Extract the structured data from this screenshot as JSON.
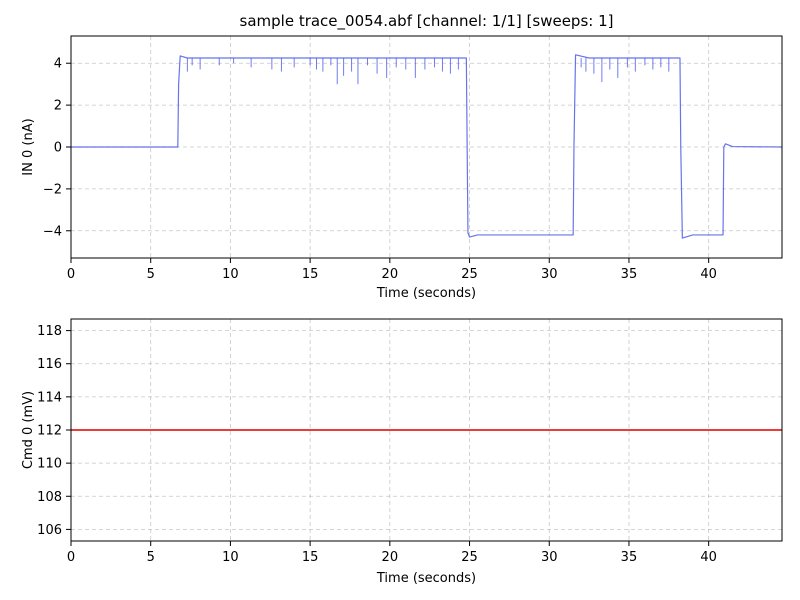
{
  "chart_data": [
    {
      "type": "line",
      "title": "sample trace_0054.abf [channel: 1/1] [sweeps: 1]",
      "xlabel": "Time (seconds)",
      "ylabel": "IN 0 (nA)",
      "xlim": [
        0,
        44.6
      ],
      "ylim": [
        -5.3,
        5.3
      ],
      "xticks": [
        0,
        5,
        10,
        15,
        20,
        25,
        30,
        35,
        40
      ],
      "yticks": [
        -4,
        -2,
        0,
        2,
        4
      ],
      "ytick_labels": [
        "−4",
        "−2",
        "0",
        "2",
        "4"
      ],
      "grid": true,
      "color": "#4c5ce8",
      "series": [
        {
          "x": [
            0,
            6.7,
            6.75,
            6.85,
            7.3,
            24.8,
            24.85,
            24.9,
            25.0,
            25.5,
            31.5,
            31.55,
            31.65,
            32.5,
            38.2,
            38.25,
            38.35,
            39.0,
            40.9,
            40.95,
            41.05,
            41.5,
            44.6
          ],
          "y": [
            0,
            0,
            3.0,
            4.35,
            4.25,
            4.25,
            0.0,
            -4.1,
            -4.3,
            -4.2,
            -4.2,
            0.0,
            4.4,
            4.25,
            4.25,
            0.0,
            -4.35,
            -4.2,
            -4.2,
            0.0,
            0.15,
            0.02,
            0.0
          ]
        }
      ],
      "spikes": {
        "x": [
          7.3,
          7.6,
          8.1,
          9.3,
          10.2,
          11.3,
          12.6,
          13.2,
          14.0,
          15.0,
          15.4,
          15.8,
          16.3,
          16.7,
          17.1,
          17.6,
          18.0,
          18.6,
          19.2,
          19.8,
          20.4,
          21.0,
          21.6,
          22.2,
          22.8,
          23.3,
          23.8,
          24.3,
          32.0,
          32.3,
          32.8,
          33.3,
          33.8,
          34.3,
          34.9,
          35.4,
          36.0,
          36.5,
          37.0,
          37.5
        ],
        "y": [
          3.6,
          3.9,
          3.7,
          3.9,
          4.0,
          3.8,
          3.7,
          3.6,
          3.8,
          3.9,
          3.7,
          3.6,
          3.9,
          3.0,
          3.4,
          3.6,
          3.0,
          3.9,
          3.5,
          3.3,
          3.8,
          3.7,
          3.3,
          3.7,
          3.8,
          3.6,
          3.5,
          3.7,
          3.8,
          3.6,
          3.5,
          3.1,
          3.7,
          3.3,
          3.8,
          3.6,
          3.9,
          3.7,
          3.8,
          3.6
        ],
        "base": 4.25
      }
    },
    {
      "type": "line",
      "title": "",
      "xlabel": "Time (seconds)",
      "ylabel": "Cmd 0 (mV)",
      "xlim": [
        0,
        44.6
      ],
      "ylim": [
        105.3,
        118.7
      ],
      "xticks": [
        0,
        5,
        10,
        15,
        20,
        25,
        30,
        35,
        40
      ],
      "yticks": [
        106,
        108,
        110,
        112,
        114,
        116,
        118
      ],
      "ytick_labels": [
        "106",
        "108",
        "110",
        "112",
        "114",
        "116",
        "118"
      ],
      "grid": true,
      "color": "#e8231c",
      "series": [
        {
          "x": [
            0,
            44.6
          ],
          "y": [
            112,
            112
          ]
        }
      ]
    }
  ]
}
